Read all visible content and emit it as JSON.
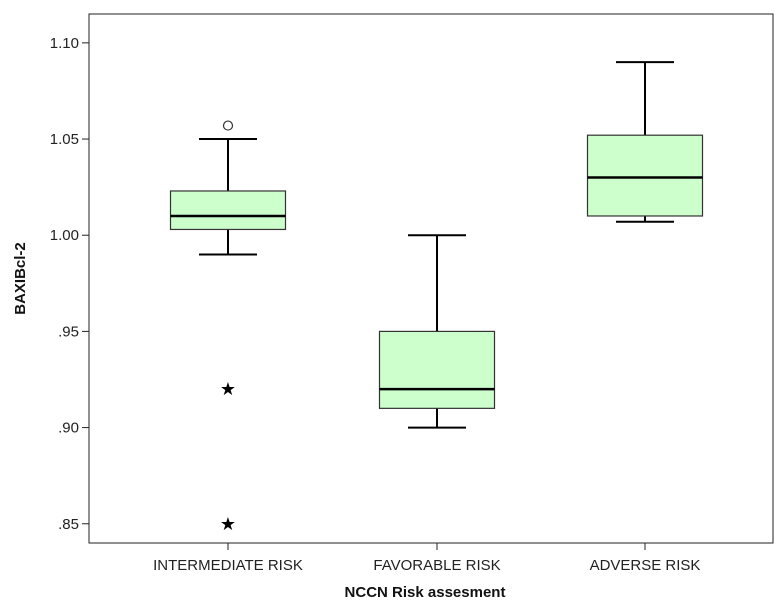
{
  "chart_data": {
    "type": "box",
    "title": "",
    "xlabel": "NCCN Risk assesment",
    "ylabel": "BAXIBcl-2",
    "ylim": [
      0.84,
      1.115
    ],
    "y_ticks": [
      0.85,
      0.9,
      0.95,
      1.0,
      1.05,
      1.1
    ],
    "y_tick_labels": [
      ".85",
      ".90",
      ".95",
      "1.00",
      "1.05",
      "1.10"
    ],
    "grid": false,
    "legend": "none",
    "categories": [
      "INTERMEDIATE RISK",
      "FAVORABLE RISK",
      "ADVERSE RISK"
    ],
    "boxes": [
      {
        "category": "INTERMEDIATE RISK",
        "whisker_low": 0.99,
        "q1": 1.003,
        "median": 1.01,
        "q3": 1.023,
        "whisker_high": 1.05,
        "outliers": [
          1.057
        ],
        "extremes": [
          0.92,
          0.85
        ]
      },
      {
        "category": "FAVORABLE RISK",
        "whisker_low": 0.9,
        "q1": 0.91,
        "median": 0.92,
        "q3": 0.95,
        "whisker_high": 1.0,
        "outliers": [],
        "extremes": []
      },
      {
        "category": "ADVERSE RISK",
        "whisker_low": 1.007,
        "q1": 1.01,
        "median": 1.03,
        "q3": 1.052,
        "whisker_high": 1.09,
        "outliers": [],
        "extremes": []
      }
    ],
    "colors": {
      "box_fill": "#ccffcc",
      "box_stroke": "#333333",
      "line": "#000000"
    }
  }
}
